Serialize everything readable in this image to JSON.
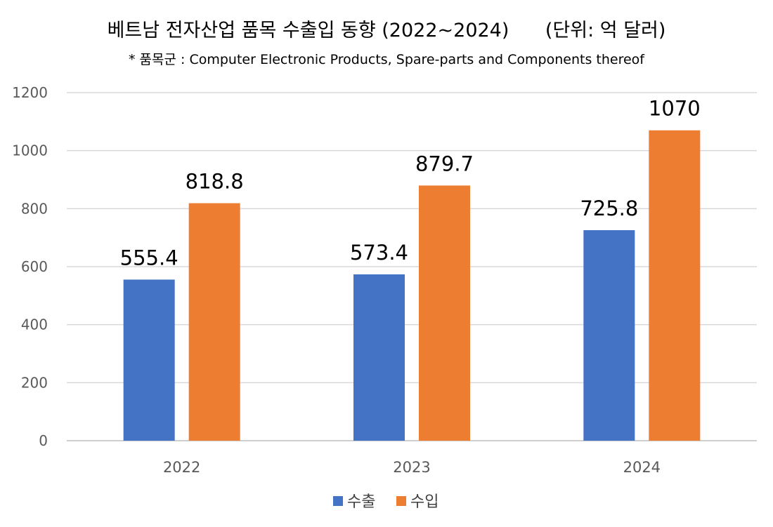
{
  "chart_data": {
    "type": "bar",
    "title": "베트남 전자산업 품목 수출입 동향 (2022~2024)      (단위: 억 달러)",
    "subtitle": "* 품목군 : Computer Electronic Products, Spare-parts and Components thereof",
    "categories": [
      "2022",
      "2023",
      "2024"
    ],
    "series": [
      {
        "name": "수출",
        "values": [
          555.4,
          573.4,
          725.8
        ],
        "labels": [
          "555.4",
          "573.4",
          "725.8"
        ],
        "color": "#4472C4"
      },
      {
        "name": "수입",
        "values": [
          818.8,
          879.7,
          1070
        ],
        "labels": [
          "818.8",
          "879.7",
          "1070"
        ],
        "color": "#ED7D31"
      }
    ],
    "ylim": [
      0,
      1200
    ],
    "yticks": [
      "0",
      "200",
      "400",
      "600",
      "800",
      "1000",
      "1200"
    ],
    "grid": true,
    "legend_position": "bottom",
    "xlabel": "",
    "ylabel": ""
  }
}
